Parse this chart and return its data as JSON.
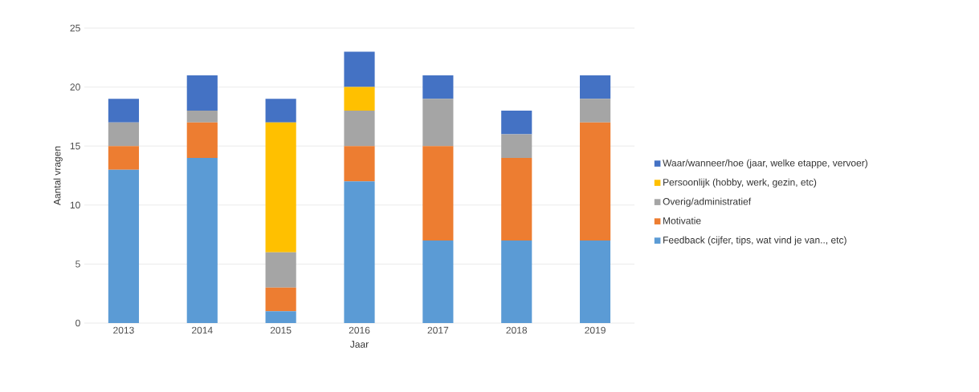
{
  "chart_data": {
    "type": "bar",
    "stacked": true,
    "xlabel": "Jaar",
    "ylabel": "Aantal vragen",
    "categories": [
      "2013",
      "2014",
      "2015",
      "2016",
      "2017",
      "2018",
      "2019"
    ],
    "series": [
      {
        "name": "Feedback (cijfer, tips, wat vind je van.., etc)",
        "color": "#5b9bd5",
        "values": [
          13,
          14,
          1,
          12,
          7,
          7,
          7
        ]
      },
      {
        "name": "Motivatie",
        "color": "#ed7d31",
        "values": [
          2,
          3,
          2,
          3,
          8,
          7,
          10
        ]
      },
      {
        "name": "Overig/administratief",
        "color": "#a5a5a5",
        "values": [
          2,
          1,
          3,
          3,
          4,
          2,
          2
        ]
      },
      {
        "name": "Persoonlijk (hobby, werk, gezin, etc)",
        "color": "#ffc000",
        "values": [
          0,
          0,
          11,
          2,
          0,
          0,
          0
        ]
      },
      {
        "name": "Waar/wanneer/hoe (jaar, welke etappe, vervoer)",
        "color": "#4472c4",
        "values": [
          2,
          3,
          2,
          3,
          2,
          2,
          2
        ]
      }
    ],
    "ylim": [
      0,
      25
    ],
    "yticks": [
      0,
      5,
      10,
      15,
      20,
      25
    ],
    "grid": "y",
    "legend": "right"
  }
}
